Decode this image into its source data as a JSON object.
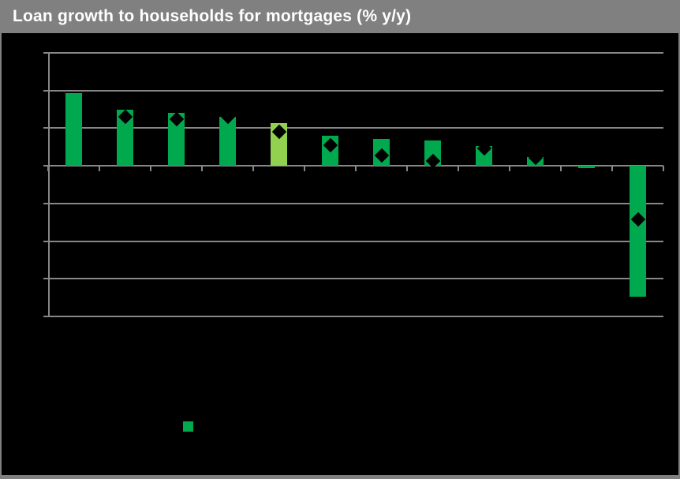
{
  "header": {
    "title": "Loan growth to households for mortgages (% y/y)",
    "bg_color": "#808080",
    "text_color": "#ffffff"
  },
  "colors": {
    "background": "#000000",
    "frame_gray": "#808080",
    "grid_gray": "#878787",
    "bar_green": "#00a94e",
    "bar_light_green": "#92d050",
    "marker_black": "#000000"
  },
  "chart_data": {
    "type": "bar",
    "title": "Loan growth to households for mortgages (% y/y)",
    "n_categories": 12,
    "categories": [
      "",
      "",
      "",
      "",
      "",
      "",
      "",
      "",
      "",
      "",
      "",
      ""
    ],
    "x_tick_labels_visible": false,
    "y_tick_labels_visible": false,
    "grid_on": true,
    "ylim": [
      -8,
      6
    ],
    "gridline_interval": 2,
    "series": [
      {
        "name": "loan-growth-bars",
        "type": "bar",
        "values": [
          3.85,
          3.0,
          2.8,
          2.6,
          2.25,
          1.6,
          1.45,
          1.35,
          1.05,
          0.45,
          -0.1,
          -6.95
        ],
        "default_color": "#00a94e",
        "bar_colors": [
          null,
          null,
          null,
          null,
          "#92d050",
          null,
          null,
          null,
          null,
          null,
          null,
          null
        ]
      },
      {
        "name": "diamond-markers",
        "type": "scatter",
        "marker": "diamond",
        "color": "#000000",
        "values": [
          null,
          2.6,
          2.5,
          2.6,
          1.8,
          1.1,
          0.57,
          0.24,
          0.93,
          0.44,
          null,
          -2.85
        ]
      }
    ],
    "legend": {
      "position": "bottom",
      "swatch_color": "#00a94e",
      "label": ""
    }
  }
}
